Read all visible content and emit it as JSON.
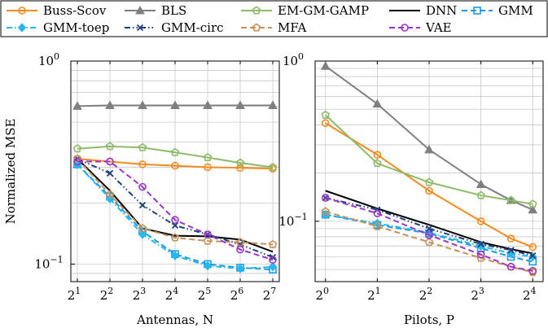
{
  "chart_data": [
    {
      "type": "line",
      "xlabel": "Antennas, N",
      "ylabel": "Normalized MSE",
      "x": [
        1,
        2,
        3,
        4,
        5,
        6,
        7
      ],
      "x_tick_base": "2",
      "x_tick_exponents": [
        "1",
        "2",
        "3",
        "4",
        "5",
        "6",
        "7"
      ],
      "y_scale": "log",
      "ylim": [
        0.082,
        1.0
      ],
      "y_tick_labels": [
        {
          "value": 1.0,
          "base": "10",
          "exp": "0"
        },
        {
          "value": 0.1,
          "base": "10",
          "exp": "−1"
        }
      ],
      "grid": true,
      "series": [
        {
          "name": "Buss-Scov",
          "values": [
            0.33,
            0.32,
            0.31,
            0.305,
            0.3,
            0.298,
            0.295
          ]
        },
        {
          "name": "BLS",
          "values": [
            0.6,
            0.605,
            0.605,
            0.605,
            0.605,
            0.605,
            0.605
          ]
        },
        {
          "name": "EM-GM-GAMP",
          "values": [
            0.37,
            0.38,
            0.375,
            0.355,
            0.335,
            0.315,
            0.3
          ]
        },
        {
          "name": "DNN",
          "values": [
            0.33,
            0.23,
            0.15,
            0.138,
            0.137,
            0.132,
            0.115
          ]
        },
        {
          "name": "GMM",
          "values": [
            0.31,
            0.215,
            0.145,
            0.112,
            0.1,
            0.096,
            0.094
          ]
        },
        {
          "name": "GMM-toep",
          "values": [
            0.31,
            0.21,
            0.14,
            0.11,
            0.098,
            0.095,
            0.097
          ]
        },
        {
          "name": "GMM-circ",
          "values": [
            0.33,
            0.28,
            0.195,
            0.155,
            0.14,
            0.125,
            0.108
          ]
        },
        {
          "name": "MFA",
          "values": [
            0.33,
            0.22,
            0.15,
            0.135,
            0.13,
            0.128,
            0.125
          ]
        },
        {
          "name": "VAE",
          "values": [
            0.32,
            0.32,
            0.24,
            0.165,
            0.14,
            0.118,
            0.105
          ]
        }
      ]
    },
    {
      "type": "line",
      "xlabel": "Pilots, P",
      "ylabel": "",
      "x": [
        0,
        1,
        2,
        3,
        3.58,
        4
      ],
      "x_tick_values": [
        0,
        1,
        2,
        3,
        4
      ],
      "x_tick_base": "2",
      "x_tick_exponents": [
        "0",
        "1",
        "2",
        "3",
        "4"
      ],
      "y_scale": "log",
      "ylim": [
        0.042,
        1.0
      ],
      "y_tick_labels": [
        {
          "value": 1.0,
          "base": "10",
          "exp": "0"
        },
        {
          "value": 0.1,
          "base": "10",
          "exp": "−1"
        }
      ],
      "grid": true,
      "series": [
        {
          "name": "Buss-Scov",
          "values": [
            0.41,
            0.26,
            0.155,
            0.1,
            0.078,
            0.069
          ]
        },
        {
          "name": "BLS",
          "values": [
            0.93,
            0.54,
            0.28,
            0.17,
            0.135,
            0.118
          ]
        },
        {
          "name": "EM-GM-GAMP",
          "values": [
            0.46,
            0.23,
            0.175,
            0.145,
            0.135,
            0.128
          ]
        },
        {
          "name": "DNN",
          "values": [
            0.155,
            0.12,
            0.095,
            0.074,
            0.067,
            0.063
          ]
        },
        {
          "name": "GMM",
          "values": [
            0.11,
            0.095,
            0.084,
            0.068,
            0.06,
            0.056
          ]
        },
        {
          "name": "GMM-toep",
          "values": [
            0.11,
            0.097,
            0.085,
            0.07,
            0.063,
            0.06
          ]
        },
        {
          "name": "GMM-circ",
          "values": [
            0.14,
            0.118,
            0.09,
            0.072,
            0.066,
            0.061
          ]
        },
        {
          "name": "MFA",
          "values": [
            0.115,
            0.093,
            0.074,
            0.059,
            0.052,
            0.048
          ]
        },
        {
          "name": "VAE",
          "values": [
            0.14,
            0.112,
            0.082,
            0.062,
            0.052,
            0.049
          ]
        }
      ]
    }
  ],
  "legend": {
    "items": [
      {
        "label": "Buss-Scov",
        "color": "#f58a1f",
        "dash": "solid",
        "marker": "circle"
      },
      {
        "label": "BLS",
        "color": "#7f7f7f",
        "dash": "solid",
        "marker": "triangle"
      },
      {
        "label": "EM-GM-GAMP",
        "color": "#8fba6a",
        "dash": "solid",
        "marker": "pentagon"
      },
      {
        "label": "DNN",
        "color": "#000000",
        "dash": "solid",
        "marker": "none"
      },
      {
        "label": "GMM",
        "color": "#1a9be5",
        "dash": "dashed",
        "marker": "square"
      },
      {
        "label": "GMM-toep",
        "color": "#2ab7f0",
        "dash": "dashdot",
        "marker": "diamond"
      },
      {
        "label": "GMM-circ",
        "color": "#1f3f7a",
        "dash": "dashdotdot",
        "marker": "x"
      },
      {
        "label": "MFA",
        "color": "#c8915a",
        "dash": "dashed",
        "marker": "pentagon"
      },
      {
        "label": "VAE",
        "color": "#9b35c9",
        "dash": "dashed",
        "marker": "circle"
      }
    ]
  }
}
